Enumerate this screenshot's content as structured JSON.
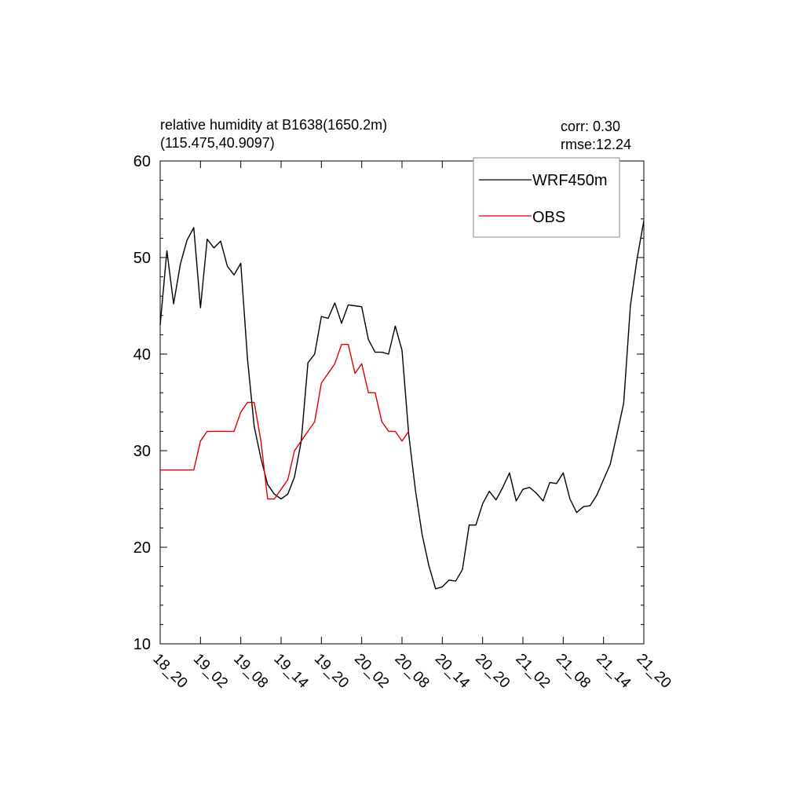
{
  "chart_data": {
    "type": "line",
    "title_line1": "relative humidity at B1638(1650.2m)",
    "title_line2": "(115.475,40.9097)",
    "stats_line1": "corr:  0.30",
    "stats_line2": "rmse:12.24",
    "ylim": [
      10,
      60
    ],
    "yticks": [
      10,
      20,
      30,
      40,
      50,
      60
    ],
    "ytick_labels": [
      "10",
      "20",
      "30",
      "40",
      "50",
      "60"
    ],
    "xtick_labels": [
      "18_20",
      "19_02",
      "19_08",
      "19_14",
      "19_20",
      "20_02",
      "20_08",
      "20_14",
      "20_20",
      "21_02",
      "21_08",
      "21_14",
      "21_20"
    ],
    "hours_per_step": 1,
    "steps_per_tick": 6,
    "grid": false,
    "legend_position": "top-right",
    "series": [
      {
        "name": "WRF450m",
        "color": "#000000",
        "values": [
          43.0,
          50.7,
          45.2,
          49.3,
          51.8,
          53.1,
          44.8,
          51.9,
          51.0,
          51.7,
          49.1,
          48.2,
          49.4,
          39.5,
          32.5,
          29.2,
          26.5,
          25.5,
          25.0,
          25.5,
          27.3,
          31.0,
          39.1,
          40.0,
          43.9,
          43.7,
          45.3,
          43.2,
          45.1,
          45.0,
          44.9,
          41.5,
          40.2,
          40.2,
          40.0,
          42.9,
          40.4,
          31.7,
          25.9,
          21.3,
          18.1,
          15.7,
          15.9,
          16.6,
          16.5,
          17.7,
          22.3,
          22.3,
          24.5,
          25.8,
          24.9,
          26.2,
          27.7,
          24.8,
          26.0,
          26.2,
          25.6,
          24.8,
          26.7,
          26.6,
          27.7,
          25.0,
          23.6,
          24.2,
          24.3,
          25.4,
          27.0,
          28.6,
          31.7,
          34.9,
          45.0,
          49.9,
          53.8
        ]
      },
      {
        "name": "OBS",
        "color": "#e00000",
        "values": [
          28,
          28,
          28,
          28,
          28,
          28,
          31,
          32,
          32,
          32,
          32,
          32,
          34,
          35,
          35,
          31,
          25,
          25,
          26,
          27,
          30,
          31,
          32,
          33,
          37,
          38,
          39,
          41,
          41,
          38,
          39,
          36,
          36,
          33,
          32,
          32,
          31,
          32
        ]
      }
    ]
  }
}
